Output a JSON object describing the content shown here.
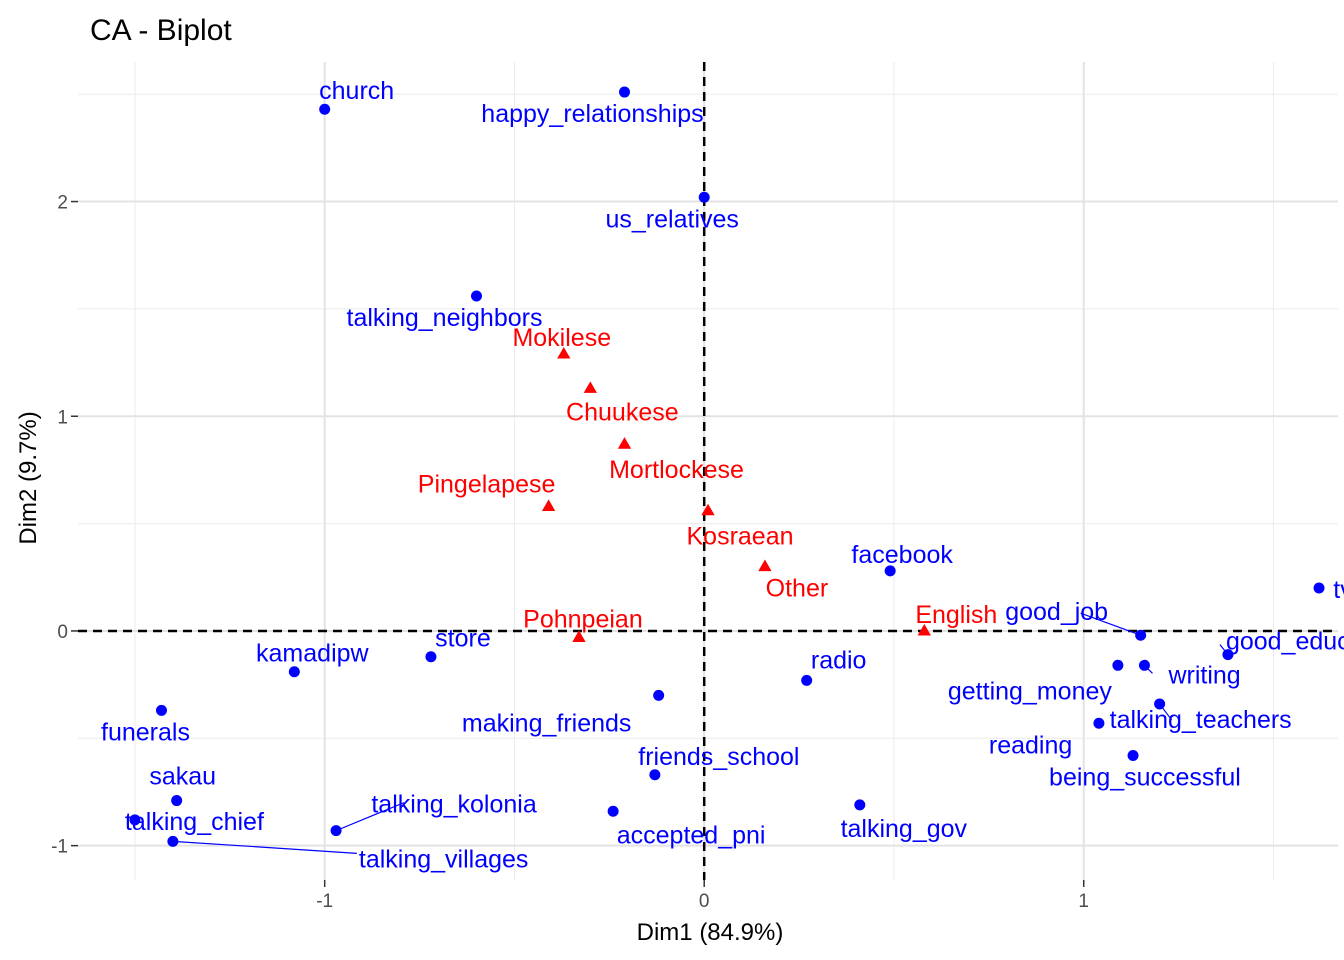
{
  "chart_data": {
    "type": "scatter",
    "title": "CA - Biplot",
    "xlabel": "Dim1 (84.9%)",
    "ylabel": "Dim2 (9.7%)",
    "xlim": [
      -1.65,
      1.67
    ],
    "ylim": [
      -1.16,
      2.65
    ],
    "x_ticks": [
      -1,
      0,
      1
    ],
    "x_tick_labels": [
      "-1",
      "0",
      "1"
    ],
    "y_ticks": [
      -1,
      0,
      1,
      2
    ],
    "y_tick_labels": [
      "-1",
      "0",
      "1",
      "2"
    ],
    "x_minor_breaks": [
      -1.5,
      -0.5,
      0.5,
      1.5
    ],
    "y_minor_breaks": [
      -0.5,
      0.5,
      1.5,
      2.5
    ],
    "grid": true,
    "reference_lines": {
      "x": 0,
      "y": 0,
      "style": "dashed"
    },
    "colors": {
      "column_points": "#0000ff",
      "row_points": "#ff0000"
    },
    "series": [
      {
        "marker": "circle",
        "color": "#0000ff",
        "points": [
          {
            "label": "church",
            "x": -1.0,
            "y": 2.43
          },
          {
            "label": "happy_relationships",
            "x": -0.21,
            "y": 2.51
          },
          {
            "label": "us_relatives",
            "x": 0.0,
            "y": 2.02
          },
          {
            "label": "talking_neighbors",
            "x": -0.6,
            "y": 1.56
          },
          {
            "label": "facebook",
            "x": 0.49,
            "y": 0.28
          },
          {
            "label": "tv",
            "x": 1.62,
            "y": 0.2
          },
          {
            "label": "good_job",
            "x": 1.15,
            "y": -0.02
          },
          {
            "label": "good_education",
            "x": 1.38,
            "y": -0.11
          },
          {
            "label": "writing",
            "x": 1.16,
            "y": -0.16
          },
          {
            "label": "getting_money",
            "x": 1.09,
            "y": -0.16
          },
          {
            "label": "talking_teachers",
            "x": 1.2,
            "y": -0.34
          },
          {
            "label": "reading",
            "x": 1.04,
            "y": -0.43
          },
          {
            "label": "being_successful",
            "x": 1.13,
            "y": -0.58
          },
          {
            "label": "radio",
            "x": 0.27,
            "y": -0.23
          },
          {
            "label": "store",
            "x": -0.72,
            "y": -0.12
          },
          {
            "label": "kamadipw",
            "x": -1.08,
            "y": -0.19
          },
          {
            "label": "making_friends",
            "x": -0.12,
            "y": -0.3
          },
          {
            "label": "friends_school",
            "x": -0.13,
            "y": -0.67
          },
          {
            "label": "accepted_pni",
            "x": -0.24,
            "y": -0.84
          },
          {
            "label": "talking_gov",
            "x": 0.41,
            "y": -0.81
          },
          {
            "label": "funerals",
            "x": -1.43,
            "y": -0.37
          },
          {
            "label": "sakau",
            "x": -1.39,
            "y": -0.79
          },
          {
            "label": "talking_chief",
            "x": -1.5,
            "y": -0.88
          },
          {
            "label": "talking_kolonia",
            "x": -0.97,
            "y": -0.93
          },
          {
            "label": "talking_villages",
            "x": -1.4,
            "y": -0.98
          }
        ]
      },
      {
        "marker": "triangle",
        "color": "#ff0000",
        "points": [
          {
            "label": "Mokilese",
            "x": -0.37,
            "y": 1.29
          },
          {
            "label": "Chuukese",
            "x": -0.3,
            "y": 1.13
          },
          {
            "label": "Mortlockese",
            "x": -0.21,
            "y": 0.87
          },
          {
            "label": "Pingelapese",
            "x": -0.41,
            "y": 0.58
          },
          {
            "label": "Kosraean",
            "x": 0.01,
            "y": 0.56
          },
          {
            "label": "Other",
            "x": 0.16,
            "y": 0.3
          },
          {
            "label": "English",
            "x": 0.58,
            "y": 0.0
          },
          {
            "label": "Pohnpeian",
            "x": -0.33,
            "y": -0.03
          }
        ]
      }
    ]
  }
}
